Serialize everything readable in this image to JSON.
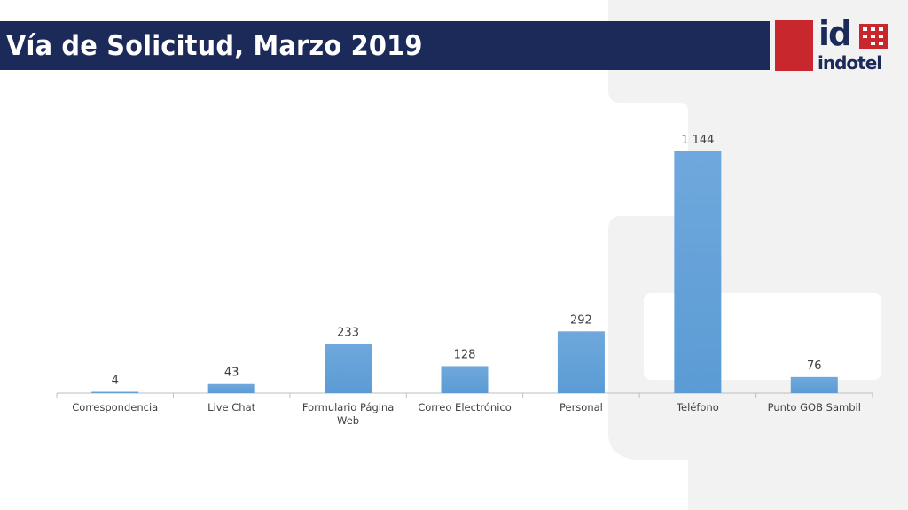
{
  "slide": {
    "title": "Vía de Solicitud, Marzo 2019",
    "logo": {
      "id_text": "id",
      "name_text": "indotel",
      "icon": "indotel-logo-icon"
    },
    "colors": {
      "banner": "#1c2a5a",
      "logo_red": "#c8282d",
      "bar": "#5b9bd5",
      "bar_light": "#6fa8dc"
    }
  },
  "chart_data": {
    "type": "bar",
    "title": "",
    "xlabel": "",
    "ylabel": "",
    "grid": false,
    "legend": "none",
    "ylim": [
      0,
      1144
    ],
    "categories": [
      "Correspondencia",
      "Live Chat",
      "Formulario Página Web",
      "Correo Electrónico",
      "Personal",
      "Teléfono",
      "Punto GOB Sambil"
    ],
    "values": [
      4,
      43,
      233,
      128,
      292,
      1144,
      76
    ],
    "data_labels": [
      "4",
      "43",
      "233",
      "128",
      "292",
      "1 144",
      "76"
    ]
  }
}
